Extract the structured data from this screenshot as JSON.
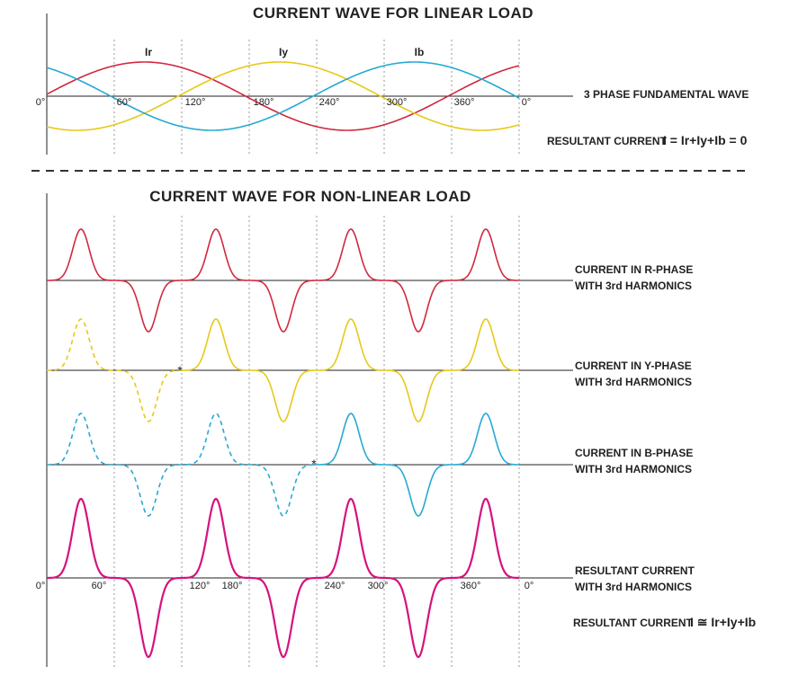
{
  "top": {
    "title": "CURRENT WAVE FOR LINEAR LOAD",
    "wave_labels": [
      "Ir",
      "Iy",
      "Ib"
    ],
    "axis_labels": [
      "0°",
      "60°",
      "120°",
      "180°",
      "240°",
      "300°",
      "360°",
      "0°"
    ],
    "fundamental_label": "3 PHASE FUNDAMENTAL WAVE",
    "resultant": {
      "label": "RESULTANT CURRENT",
      "formula": "I = Ir+Iy+Ib = 0"
    }
  },
  "bottom": {
    "title": "CURRENT WAVE FOR NON-LINEAR LOAD",
    "rows": [
      {
        "line1": "CURRENT IN R-PHASE",
        "line2": "WITH 3rd HARMONICS"
      },
      {
        "line1": "CURRENT IN Y-PHASE",
        "line2": "WITH 3rd HARMONICS"
      },
      {
        "line1": "CURRENT IN B-PHASE",
        "line2": "WITH 3rd HARMONICS"
      },
      {
        "line1": "RESULTANT CURRENT",
        "line2": "WITH 3rd HARMONICS"
      }
    ],
    "markers": [
      "*",
      "*"
    ],
    "axis_labels": [
      "0°",
      "60°",
      "120°",
      "180°",
      "240°",
      "300°",
      "360°",
      "0°"
    ],
    "resultant": {
      "label": "RESULTANT CURRENT",
      "formula": "I ≅ Ir+Iy+Ib"
    }
  }
}
